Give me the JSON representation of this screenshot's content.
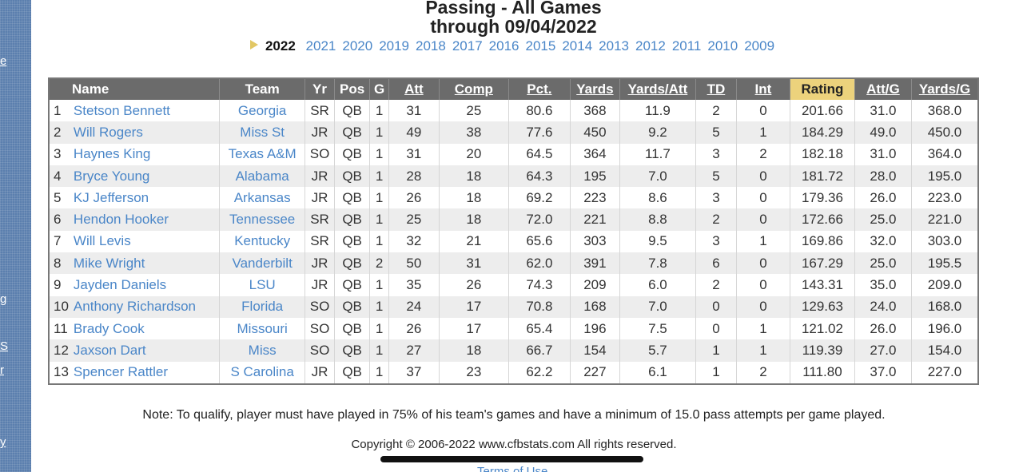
{
  "page": {
    "title_line1": "Passing - All Games",
    "title_line2": "through 09/04/2022"
  },
  "sidebar_fragments": [
    "e",
    "g",
    "S",
    "r",
    "y"
  ],
  "years": {
    "selected": "2022",
    "items": [
      "2021",
      "2020",
      "2019",
      "2018",
      "2017",
      "2016",
      "2015",
      "2014",
      "2013",
      "2012",
      "2011",
      "2010",
      "2009"
    ]
  },
  "table": {
    "headers": {
      "name": "Name",
      "team": "Team",
      "yr": "Yr",
      "pos": "Pos",
      "g": "G",
      "att": "Att",
      "comp": "Comp",
      "pct": "Pct.",
      "yards": "Yards",
      "yards_att": "Yards/Att",
      "td": "TD",
      "int": "Int",
      "rating": "Rating",
      "att_g": "Att/G",
      "yards_g": "Yards/G"
    },
    "rows": [
      {
        "rank": "1",
        "name": "Stetson Bennett",
        "team": "Georgia",
        "yr": "SR",
        "pos": "QB",
        "g": "1",
        "att": "31",
        "comp": "25",
        "pct": "80.6",
        "yards": "368",
        "yards_att": "11.9",
        "td": "2",
        "int": "0",
        "rating": "201.66",
        "att_g": "31.0",
        "yards_g": "368.0"
      },
      {
        "rank": "2",
        "name": "Will Rogers",
        "team": "Miss St",
        "yr": "JR",
        "pos": "QB",
        "g": "1",
        "att": "49",
        "comp": "38",
        "pct": "77.6",
        "yards": "450",
        "yards_att": "9.2",
        "td": "5",
        "int": "1",
        "rating": "184.29",
        "att_g": "49.0",
        "yards_g": "450.0"
      },
      {
        "rank": "3",
        "name": "Haynes King",
        "team": "Texas A&M",
        "yr": "SO",
        "pos": "QB",
        "g": "1",
        "att": "31",
        "comp": "20",
        "pct": "64.5",
        "yards": "364",
        "yards_att": "11.7",
        "td": "3",
        "int": "2",
        "rating": "182.18",
        "att_g": "31.0",
        "yards_g": "364.0"
      },
      {
        "rank": "4",
        "name": "Bryce Young",
        "team": "Alabama",
        "yr": "JR",
        "pos": "QB",
        "g": "1",
        "att": "28",
        "comp": "18",
        "pct": "64.3",
        "yards": "195",
        "yards_att": "7.0",
        "td": "5",
        "int": "0",
        "rating": "181.72",
        "att_g": "28.0",
        "yards_g": "195.0"
      },
      {
        "rank": "5",
        "name": "KJ Jefferson",
        "team": "Arkansas",
        "yr": "JR",
        "pos": "QB",
        "g": "1",
        "att": "26",
        "comp": "18",
        "pct": "69.2",
        "yards": "223",
        "yards_att": "8.6",
        "td": "3",
        "int": "0",
        "rating": "179.36",
        "att_g": "26.0",
        "yards_g": "223.0"
      },
      {
        "rank": "6",
        "name": "Hendon Hooker",
        "team": "Tennessee",
        "yr": "SR",
        "pos": "QB",
        "g": "1",
        "att": "25",
        "comp": "18",
        "pct": "72.0",
        "yards": "221",
        "yards_att": "8.8",
        "td": "2",
        "int": "0",
        "rating": "172.66",
        "att_g": "25.0",
        "yards_g": "221.0"
      },
      {
        "rank": "7",
        "name": "Will Levis",
        "team": "Kentucky",
        "yr": "SR",
        "pos": "QB",
        "g": "1",
        "att": "32",
        "comp": "21",
        "pct": "65.6",
        "yards": "303",
        "yards_att": "9.5",
        "td": "3",
        "int": "1",
        "rating": "169.86",
        "att_g": "32.0",
        "yards_g": "303.0"
      },
      {
        "rank": "8",
        "name": "Mike Wright",
        "team": "Vanderbilt",
        "yr": "JR",
        "pos": "QB",
        "g": "2",
        "att": "50",
        "comp": "31",
        "pct": "62.0",
        "yards": "391",
        "yards_att": "7.8",
        "td": "6",
        "int": "0",
        "rating": "167.29",
        "att_g": "25.0",
        "yards_g": "195.5"
      },
      {
        "rank": "9",
        "name": "Jayden Daniels",
        "team": "LSU",
        "yr": "JR",
        "pos": "QB",
        "g": "1",
        "att": "35",
        "comp": "26",
        "pct": "74.3",
        "yards": "209",
        "yards_att": "6.0",
        "td": "2",
        "int": "0",
        "rating": "143.31",
        "att_g": "35.0",
        "yards_g": "209.0"
      },
      {
        "rank": "10",
        "name": "Anthony Richardson",
        "team": "Florida",
        "yr": "SO",
        "pos": "QB",
        "g": "1",
        "att": "24",
        "comp": "17",
        "pct": "70.8",
        "yards": "168",
        "yards_att": "7.0",
        "td": "0",
        "int": "0",
        "rating": "129.63",
        "att_g": "24.0",
        "yards_g": "168.0"
      },
      {
        "rank": "11",
        "name": "Brady Cook",
        "team": "Missouri",
        "yr": "SO",
        "pos": "QB",
        "g": "1",
        "att": "26",
        "comp": "17",
        "pct": "65.4",
        "yards": "196",
        "yards_att": "7.5",
        "td": "0",
        "int": "1",
        "rating": "121.02",
        "att_g": "26.0",
        "yards_g": "196.0"
      },
      {
        "rank": "12",
        "name": "Jaxson Dart",
        "team": "Miss",
        "yr": "SO",
        "pos": "QB",
        "g": "1",
        "att": "27",
        "comp": "18",
        "pct": "66.7",
        "yards": "154",
        "yards_att": "5.7",
        "td": "1",
        "int": "1",
        "rating": "119.39",
        "att_g": "27.0",
        "yards_g": "154.0"
      },
      {
        "rank": "13",
        "name": "Spencer Rattler",
        "team": "S Carolina",
        "yr": "JR",
        "pos": "QB",
        "g": "1",
        "att": "37",
        "comp": "23",
        "pct": "62.2",
        "yards": "227",
        "yards_att": "6.1",
        "td": "1",
        "int": "2",
        "rating": "111.80",
        "att_g": "37.0",
        "yards_g": "227.0"
      }
    ]
  },
  "footer": {
    "note": "Note: To qualify, player must have played in 75% of his team's games and have a minimum of 15.0 pass attempts per game played.",
    "copyright": "Copyright © 2006-2022 www.cfbstats.com All rights reserved.",
    "terms": "Terms of Use"
  },
  "colors": {
    "link": "#4a86c8",
    "header_bg": "#6b6b6b",
    "rating_header_bg": "#ecd27c",
    "sidebar_bg": "#5b7fae",
    "year_marker": "#e2c764"
  }
}
